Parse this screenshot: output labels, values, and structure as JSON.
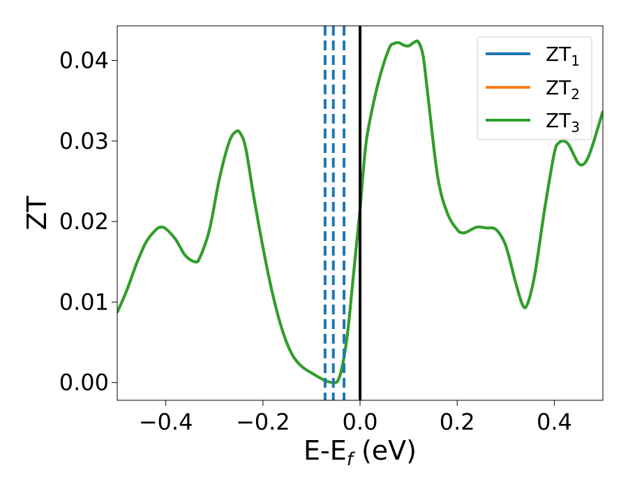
{
  "chart_data": {
    "type": "line",
    "xlabel_main": "E-E",
    "xlabel_sub": "f",
    "xlabel_unit": " (eV)",
    "ylabel": "ZT",
    "xlim": [
      -0.5,
      0.5
    ],
    "ylim": [
      -0.0022,
      0.0443
    ],
    "grid": false,
    "legend_position": "top-right",
    "x_ticks": [
      {
        "value": -0.4,
        "label": "−0.4"
      },
      {
        "value": -0.2,
        "label": "−0.2"
      },
      {
        "value": 0.0,
        "label": "0.0"
      },
      {
        "value": 0.2,
        "label": "0.2"
      },
      {
        "value": 0.4,
        "label": "0.4"
      }
    ],
    "y_ticks": [
      {
        "value": 0.0,
        "label": "0.00"
      },
      {
        "value": 0.01,
        "label": "0.01"
      },
      {
        "value": 0.02,
        "label": "0.02"
      },
      {
        "value": 0.03,
        "label": "0.03"
      },
      {
        "value": 0.04,
        "label": "0.04"
      }
    ],
    "series": [
      {
        "name_main": "ZT",
        "name_sub": "1",
        "color": "#1f77b4"
      },
      {
        "name_main": "ZT",
        "name_sub": "2",
        "color": "#ff7f0e"
      },
      {
        "name_main": "ZT",
        "name_sub": "3",
        "color": "#2ca02c"
      }
    ],
    "curve": {
      "x": [
        -0.5,
        -0.48,
        -0.46,
        -0.44,
        -0.42,
        -0.41,
        -0.4,
        -0.38,
        -0.36,
        -0.34,
        -0.33,
        -0.31,
        -0.29,
        -0.27,
        -0.255,
        -0.245,
        -0.235,
        -0.22,
        -0.2,
        -0.18,
        -0.16,
        -0.14,
        -0.12,
        -0.1,
        -0.08,
        -0.07,
        -0.055,
        -0.045,
        -0.035,
        -0.025,
        -0.015,
        -0.005,
        0.0,
        0.01,
        0.02,
        0.04,
        0.06,
        0.07,
        0.08,
        0.09,
        0.1,
        0.11,
        0.12,
        0.13,
        0.14,
        0.16,
        0.18,
        0.2,
        0.21,
        0.22,
        0.24,
        0.26,
        0.28,
        0.3,
        0.32,
        0.335,
        0.345,
        0.36,
        0.38,
        0.4,
        0.41,
        0.42,
        0.43,
        0.44,
        0.45,
        0.46,
        0.47,
        0.48,
        0.5
      ],
      "y": [
        0.0087,
        0.0115,
        0.0148,
        0.0175,
        0.019,
        0.0193,
        0.0191,
        0.0178,
        0.0158,
        0.015,
        0.0155,
        0.019,
        0.0252,
        0.0298,
        0.0312,
        0.0308,
        0.029,
        0.0235,
        0.0168,
        0.011,
        0.0065,
        0.0035,
        0.002,
        0.0012,
        0.0005,
        0.0002,
        0.0,
        0.0003,
        0.0025,
        0.0065,
        0.0125,
        0.0185,
        0.0215,
        0.0285,
        0.0325,
        0.0378,
        0.0415,
        0.0421,
        0.0422,
        0.0419,
        0.0418,
        0.0422,
        0.0423,
        0.0405,
        0.0355,
        0.0255,
        0.021,
        0.019,
        0.0186,
        0.0187,
        0.0193,
        0.0192,
        0.019,
        0.017,
        0.0125,
        0.0096,
        0.0098,
        0.0135,
        0.0215,
        0.0285,
        0.0298,
        0.03,
        0.0295,
        0.0283,
        0.0272,
        0.0271,
        0.028,
        0.0297,
        0.0337
      ]
    },
    "vertical_lines": [
      {
        "x": -0.072,
        "style": "dashed",
        "color": "#1f77b4"
      },
      {
        "x": -0.055,
        "style": "dashed",
        "color": "#1f77b4"
      },
      {
        "x": -0.033,
        "style": "dashed",
        "color": "#1f77b4"
      },
      {
        "x": 0.0,
        "style": "solid",
        "color": "#000000"
      }
    ]
  }
}
